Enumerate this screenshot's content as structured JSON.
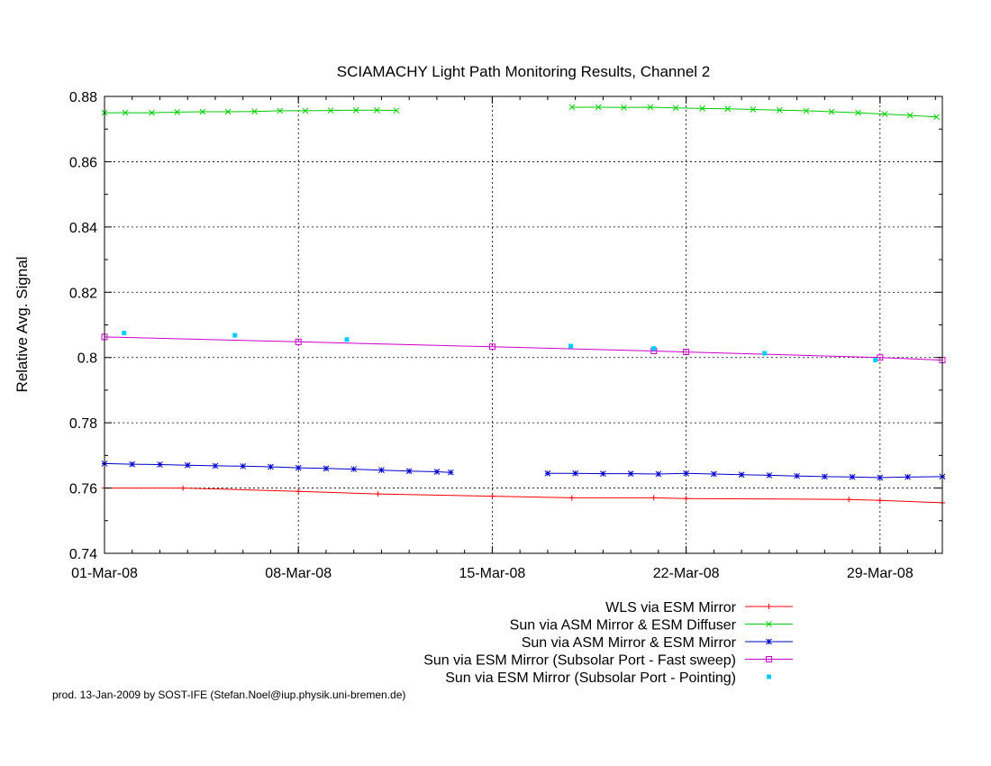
{
  "chart_data": {
    "type": "line",
    "title": "SCIAMACHY Light Path Monitoring Results, Channel 2",
    "xlabel": "",
    "ylabel": "Relative Avg. Signal",
    "x_axis": {
      "type": "date",
      "range": [
        "2008-03-01",
        "2008-03-31T06:00"
      ],
      "major_ticks": [
        {
          "date": "2008-03-01",
          "label": "01-Mar-08"
        },
        {
          "date": "2008-03-08",
          "label": "08-Mar-08"
        },
        {
          "date": "2008-03-15",
          "label": "15-Mar-08"
        },
        {
          "date": "2008-03-22",
          "label": "22-Mar-08"
        },
        {
          "date": "2008-03-29",
          "label": "29-Mar-08"
        }
      ]
    },
    "y_axis": {
      "range": [
        0.74,
        0.88
      ],
      "ticks": [
        {
          "value": 0.74,
          "label": "0.74"
        },
        {
          "value": 0.76,
          "label": "0.76"
        },
        {
          "value": 0.78,
          "label": "0.78"
        },
        {
          "value": 0.8,
          "label": "0.8"
        },
        {
          "value": 0.82,
          "label": "0.82"
        },
        {
          "value": 0.84,
          "label": "0.84"
        },
        {
          "value": 0.86,
          "label": "0.86"
        },
        {
          "value": 0.88,
          "label": "0.88"
        }
      ]
    },
    "grid": true,
    "legend_position": "bottom-right",
    "series": [
      {
        "name": "WLS via ESM Mirror",
        "color": "#ff0000",
        "marker": "plus",
        "style": "line",
        "points": [
          {
            "x": "2008-03-01",
            "y": 0.76
          },
          {
            "x": "2008-03-03T20:00",
            "y": 0.76
          },
          {
            "x": "2008-03-08",
            "y": 0.759
          },
          {
            "x": "2008-03-10T21:00",
            "y": 0.7582
          },
          {
            "x": "2008-03-15",
            "y": 0.7575
          },
          {
            "x": "2008-03-17T21:00",
            "y": 0.757
          },
          {
            "x": "2008-03-20T20:00",
            "y": 0.757
          },
          {
            "x": "2008-03-22",
            "y": 0.7568
          },
          {
            "x": "2008-03-27T21:00",
            "y": 0.7565
          },
          {
            "x": "2008-03-29",
            "y": 0.7562
          },
          {
            "x": "2008-03-31T06:00",
            "y": 0.7555
          }
        ]
      },
      {
        "name": "Sun via ASM Mirror & ESM Diffuser",
        "color": "#00cc00",
        "marker": "cross",
        "style": "line",
        "segments": [
          [
            {
              "x": "2008-03-01",
              "y": 0.875
            },
            {
              "x": "2008-03-01T18:00",
              "y": 0.875
            },
            {
              "x": "2008-03-02T17:00",
              "y": 0.875
            },
            {
              "x": "2008-03-03T15:00",
              "y": 0.8752
            },
            {
              "x": "2008-03-04T13:00",
              "y": 0.8753
            },
            {
              "x": "2008-03-05T11:00",
              "y": 0.8753
            },
            {
              "x": "2008-03-06T10:00",
              "y": 0.8754
            },
            {
              "x": "2008-03-07T08:00",
              "y": 0.8756
            },
            {
              "x": "2008-03-08T06:00",
              "y": 0.8756
            },
            {
              "x": "2008-03-09T04:00",
              "y": 0.8757
            },
            {
              "x": "2008-03-10T02:00",
              "y": 0.8758
            },
            {
              "x": "2008-03-10T20:00",
              "y": 0.8758
            },
            {
              "x": "2008-03-11T13:00",
              "y": 0.8757
            }
          ],
          [
            {
              "x": "2008-03-17T21:00",
              "y": 0.8767
            },
            {
              "x": "2008-03-18T20:00",
              "y": 0.8767
            },
            {
              "x": "2008-03-19T18:00",
              "y": 0.8766
            },
            {
              "x": "2008-03-20T17:00",
              "y": 0.8767
            },
            {
              "x": "2008-03-21T15:00",
              "y": 0.8765
            },
            {
              "x": "2008-03-22T14:00",
              "y": 0.8763
            },
            {
              "x": "2008-03-23T12:00",
              "y": 0.8762
            },
            {
              "x": "2008-03-24T10:00",
              "y": 0.876
            },
            {
              "x": "2008-03-25T09:00",
              "y": 0.8758
            },
            {
              "x": "2008-03-26T08:00",
              "y": 0.8756
            },
            {
              "x": "2008-03-27T06:00",
              "y": 0.8753
            },
            {
              "x": "2008-03-28T05:00",
              "y": 0.875
            },
            {
              "x": "2008-03-29T04:00",
              "y": 0.8746
            },
            {
              "x": "2008-03-30T02:00",
              "y": 0.8742
            },
            {
              "x": "2008-03-31T01:00",
              "y": 0.8737
            }
          ]
        ]
      },
      {
        "name": "Sun via ASM Mirror & ESM Mirror",
        "color": "#0000cc",
        "marker": "star",
        "style": "line",
        "segments": [
          [
            {
              "x": "2008-03-01",
              "y": 0.7675
            },
            {
              "x": "2008-03-02",
              "y": 0.7673
            },
            {
              "x": "2008-03-03",
              "y": 0.7672
            },
            {
              "x": "2008-03-04",
              "y": 0.767
            },
            {
              "x": "2008-03-05",
              "y": 0.7668
            },
            {
              "x": "2008-03-06",
              "y": 0.7667
            },
            {
              "x": "2008-03-07",
              "y": 0.7665
            },
            {
              "x": "2008-03-08",
              "y": 0.7662
            },
            {
              "x": "2008-03-09",
              "y": 0.766
            },
            {
              "x": "2008-03-10",
              "y": 0.7658
            },
            {
              "x": "2008-03-11",
              "y": 0.7655
            },
            {
              "x": "2008-03-12",
              "y": 0.7652
            },
            {
              "x": "2008-03-13",
              "y": 0.765
            },
            {
              "x": "2008-03-13T12:00",
              "y": 0.7648
            }
          ],
          [
            {
              "x": "2008-03-17",
              "y": 0.7645
            },
            {
              "x": "2008-03-18",
              "y": 0.7645
            },
            {
              "x": "2008-03-19",
              "y": 0.7644
            },
            {
              "x": "2008-03-20",
              "y": 0.7644
            },
            {
              "x": "2008-03-21",
              "y": 0.7643
            },
            {
              "x": "2008-03-22",
              "y": 0.7645
            },
            {
              "x": "2008-03-23",
              "y": 0.7643
            },
            {
              "x": "2008-03-24",
              "y": 0.7641
            },
            {
              "x": "2008-03-25",
              "y": 0.7639
            },
            {
              "x": "2008-03-26",
              "y": 0.7637
            },
            {
              "x": "2008-03-27",
              "y": 0.7635
            },
            {
              "x": "2008-03-28",
              "y": 0.7634
            },
            {
              "x": "2008-03-29",
              "y": 0.7632
            },
            {
              "x": "2008-03-30",
              "y": 0.7634
            },
            {
              "x": "2008-03-31T06:00",
              "y": 0.7635
            }
          ]
        ]
      },
      {
        "name": "Sun via ESM Mirror (Subsolar Port - Fast sweep)",
        "color": "#cc00cc",
        "marker": "square",
        "style": "line",
        "points": [
          {
            "x": "2008-03-01",
            "y": 0.8063
          },
          {
            "x": "2008-03-08",
            "y": 0.8048
          },
          {
            "x": "2008-03-15",
            "y": 0.8033
          },
          {
            "x": "2008-03-20T20:00",
            "y": 0.802
          },
          {
            "x": "2008-03-22",
            "y": 0.8017
          },
          {
            "x": "2008-03-29",
            "y": 0.8
          },
          {
            "x": "2008-03-31T06:00",
            "y": 0.7992
          }
        ]
      },
      {
        "name": "Sun via ESM Mirror (Subsolar Port - Pointing)",
        "color": "#00ccff",
        "marker": "dot",
        "style": "points",
        "points": [
          {
            "x": "2008-03-01T17:00",
            "y": 0.8075
          },
          {
            "x": "2008-03-05T17:00",
            "y": 0.8068
          },
          {
            "x": "2008-03-09T18:00",
            "y": 0.8055
          },
          {
            "x": "2008-03-17T20:00",
            "y": 0.8035
          },
          {
            "x": "2008-03-20T20:00",
            "y": 0.8028
          },
          {
            "x": "2008-03-24T20:00",
            "y": 0.8013
          },
          {
            "x": "2008-03-28T20:00",
            "y": 0.7992
          }
        ]
      }
    ]
  },
  "footer": "prod. 13-Jan-2009 by SOST-IFE (Stefan.Noel@iup.physik.uni-bremen.de)"
}
